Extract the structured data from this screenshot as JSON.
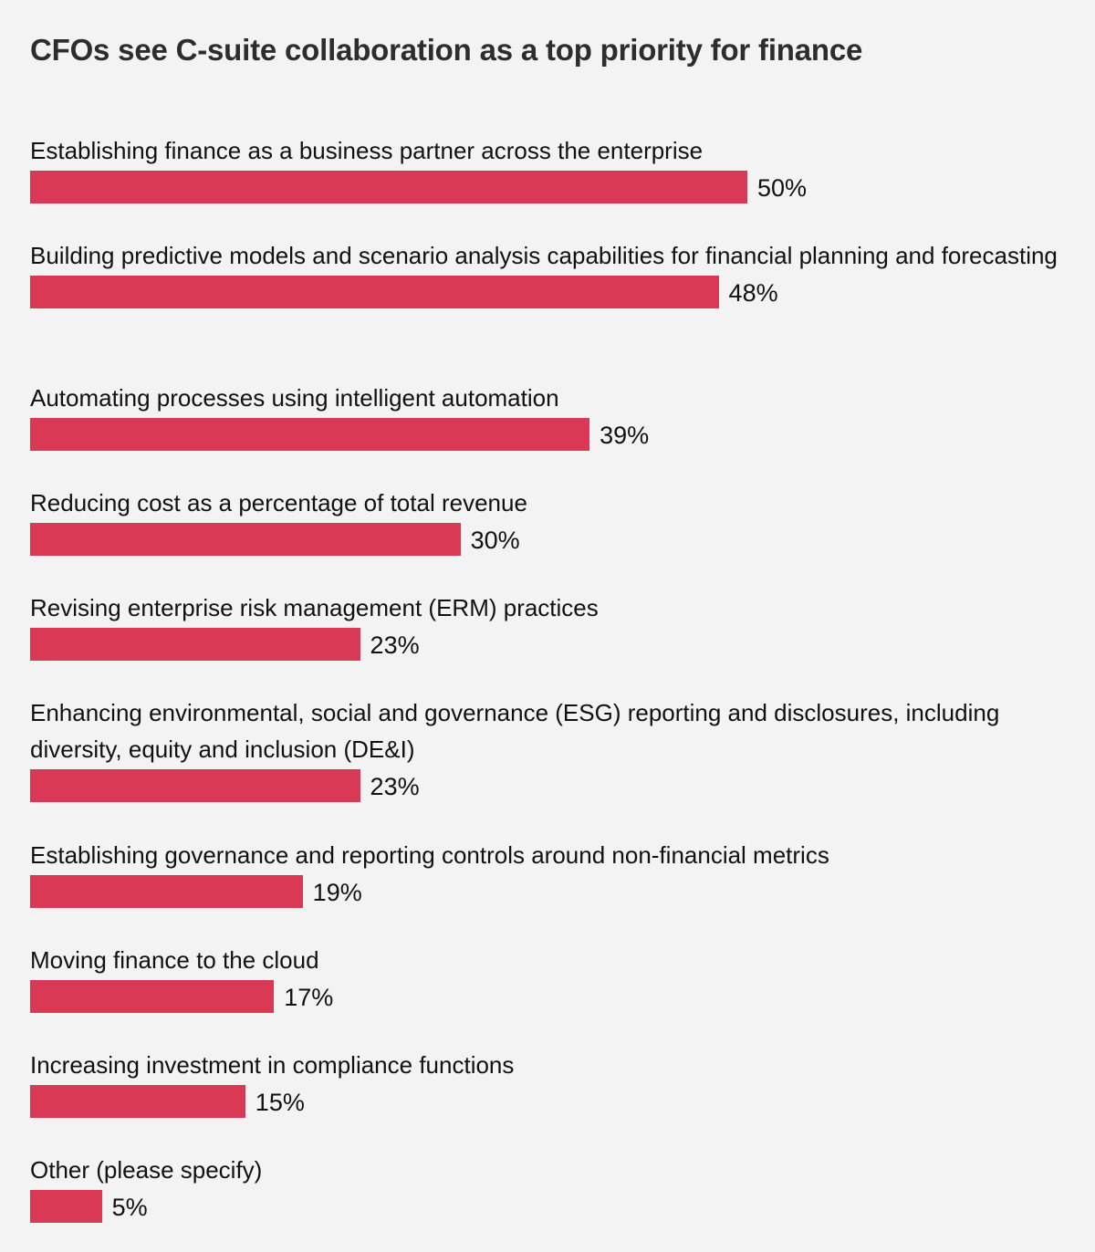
{
  "chart_data": {
    "type": "bar",
    "orientation": "horizontal",
    "title": "CFOs see C-suite collaboration as a top priority for finance",
    "bar_color": "#d93954",
    "xlim": [
      0,
      100
    ],
    "categories": [
      "Establishing finance as a business partner across the enterprise",
      "Building predictive models and scenario analysis capabilities for financial planning and forecasting",
      "Automating processes using intelligent automation",
      "Reducing cost as a percentage of total revenue",
      "Revising enterprise risk management (ERM) practices",
      "Enhancing environmental, social and governance (ESG) reporting and disclosures, including diversity, equity and inclusion (DE&I)",
      "Establishing governance and reporting controls around non-financial metrics",
      "Moving finance to the cloud",
      "Increasing investment in compliance functions",
      "Other (please specify)"
    ],
    "values": [
      50,
      48,
      39,
      30,
      23,
      23,
      19,
      17,
      15,
      5
    ],
    "value_labels": [
      "50%",
      "48%",
      "39%",
      "30%",
      "23%",
      "23%",
      "19%",
      "17%",
      "15%",
      "5%"
    ]
  }
}
